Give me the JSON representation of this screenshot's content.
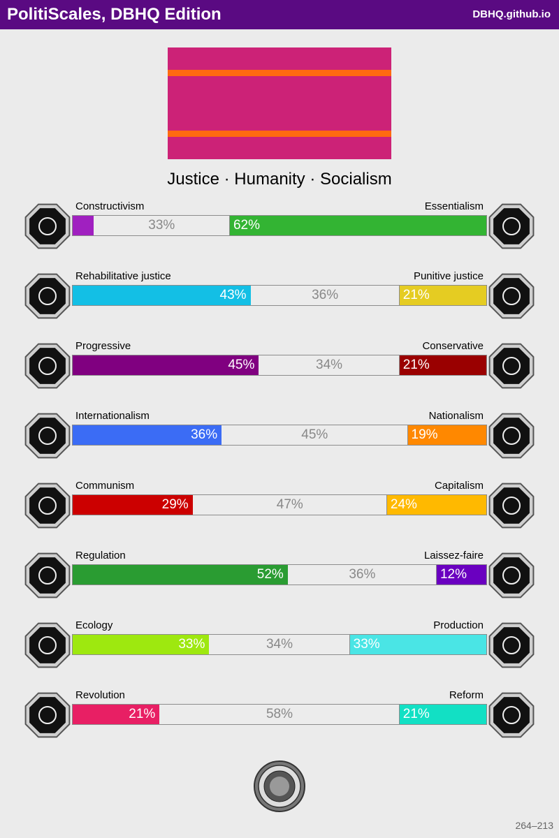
{
  "header": {
    "title": "PolitiScales, DBHQ Edition",
    "site": "DBHQ.github.io"
  },
  "flag": {
    "background": "#cc2277",
    "stripe_color": "#ff6a10"
  },
  "slogan": "Justice · Humanity · Socialism",
  "axes": [
    {
      "left_label": "Constructivism",
      "right_label": "Essentialism",
      "left_pct": 5,
      "mid_pct": 33,
      "right_pct": 62,
      "left_text": "",
      "mid_text": "33%",
      "right_text": "62%",
      "left_color": "#a020c0",
      "right_color": "#33b433",
      "left_icon": "eye-icon",
      "right_icon": "flower-icon"
    },
    {
      "left_label": "Rehabilitative justice",
      "right_label": "Punitive justice",
      "left_pct": 43,
      "mid_pct": 36,
      "right_pct": 21,
      "left_text": "43%",
      "mid_text": "36%",
      "right_text": "21%",
      "left_color": "#13bfe5",
      "right_color": "#e5cc22",
      "left_icon": "handshake-icon",
      "right_icon": "prison-bars-icon"
    },
    {
      "left_label": "Progressive",
      "right_label": "Conservative",
      "left_pct": 45,
      "mid_pct": 34,
      "right_pct": 21,
      "left_text": "45%",
      "mid_text": "34%",
      "right_text": "21%",
      "left_color": "#800080",
      "right_color": "#9a0000",
      "left_icon": "torch-icon",
      "right_icon": "fountain-pen-icon"
    },
    {
      "left_label": "Internationalism",
      "right_label": "Nationalism",
      "left_pct": 36,
      "mid_pct": 45,
      "right_pct": 19,
      "left_text": "36%",
      "mid_text": "45%",
      "right_text": "19%",
      "left_color": "#3b6cf5",
      "right_color": "#ff8800",
      "left_icon": "globe-icon",
      "right_icon": "flag-icon"
    },
    {
      "left_label": "Communism",
      "right_label": "Capitalism",
      "left_pct": 29,
      "mid_pct": 47,
      "right_pct": 24,
      "left_text": "29%",
      "mid_text": "47%",
      "right_text": "24%",
      "left_color": "#cc0000",
      "right_color": "#ffb900",
      "left_icon": "hammer-sickle-icon",
      "right_icon": "money-bag-icon"
    },
    {
      "left_label": "Regulation",
      "right_label": "Laissez-faire",
      "left_pct": 52,
      "mid_pct": 36,
      "right_pct": 12,
      "left_text": "52%",
      "mid_text": "36%",
      "right_text": "12%",
      "left_color": "#2a9c32",
      "right_color": "#6a00c0",
      "left_icon": "ruler-icon",
      "right_icon": "butterfly-icon"
    },
    {
      "left_label": "Ecology",
      "right_label": "Production",
      "left_pct": 33,
      "mid_pct": 34,
      "right_pct": 33,
      "left_text": "33%",
      "mid_text": "34%",
      "right_text": "33%",
      "left_color": "#9ee80f",
      "right_color": "#4ae5e5",
      "left_icon": "sprout-icon",
      "right_icon": "gear-icon"
    },
    {
      "left_label": "Revolution",
      "right_label": "Reform",
      "left_pct": 21,
      "mid_pct": 58,
      "right_pct": 21,
      "left_text": "21%",
      "mid_text": "58%",
      "right_text": "21%",
      "left_color": "#e81f64",
      "right_color": "#12e0c4",
      "left_icon": "fist-icon",
      "right_icon": "ballot-icon"
    }
  ],
  "footer": {
    "id": "264–213"
  }
}
